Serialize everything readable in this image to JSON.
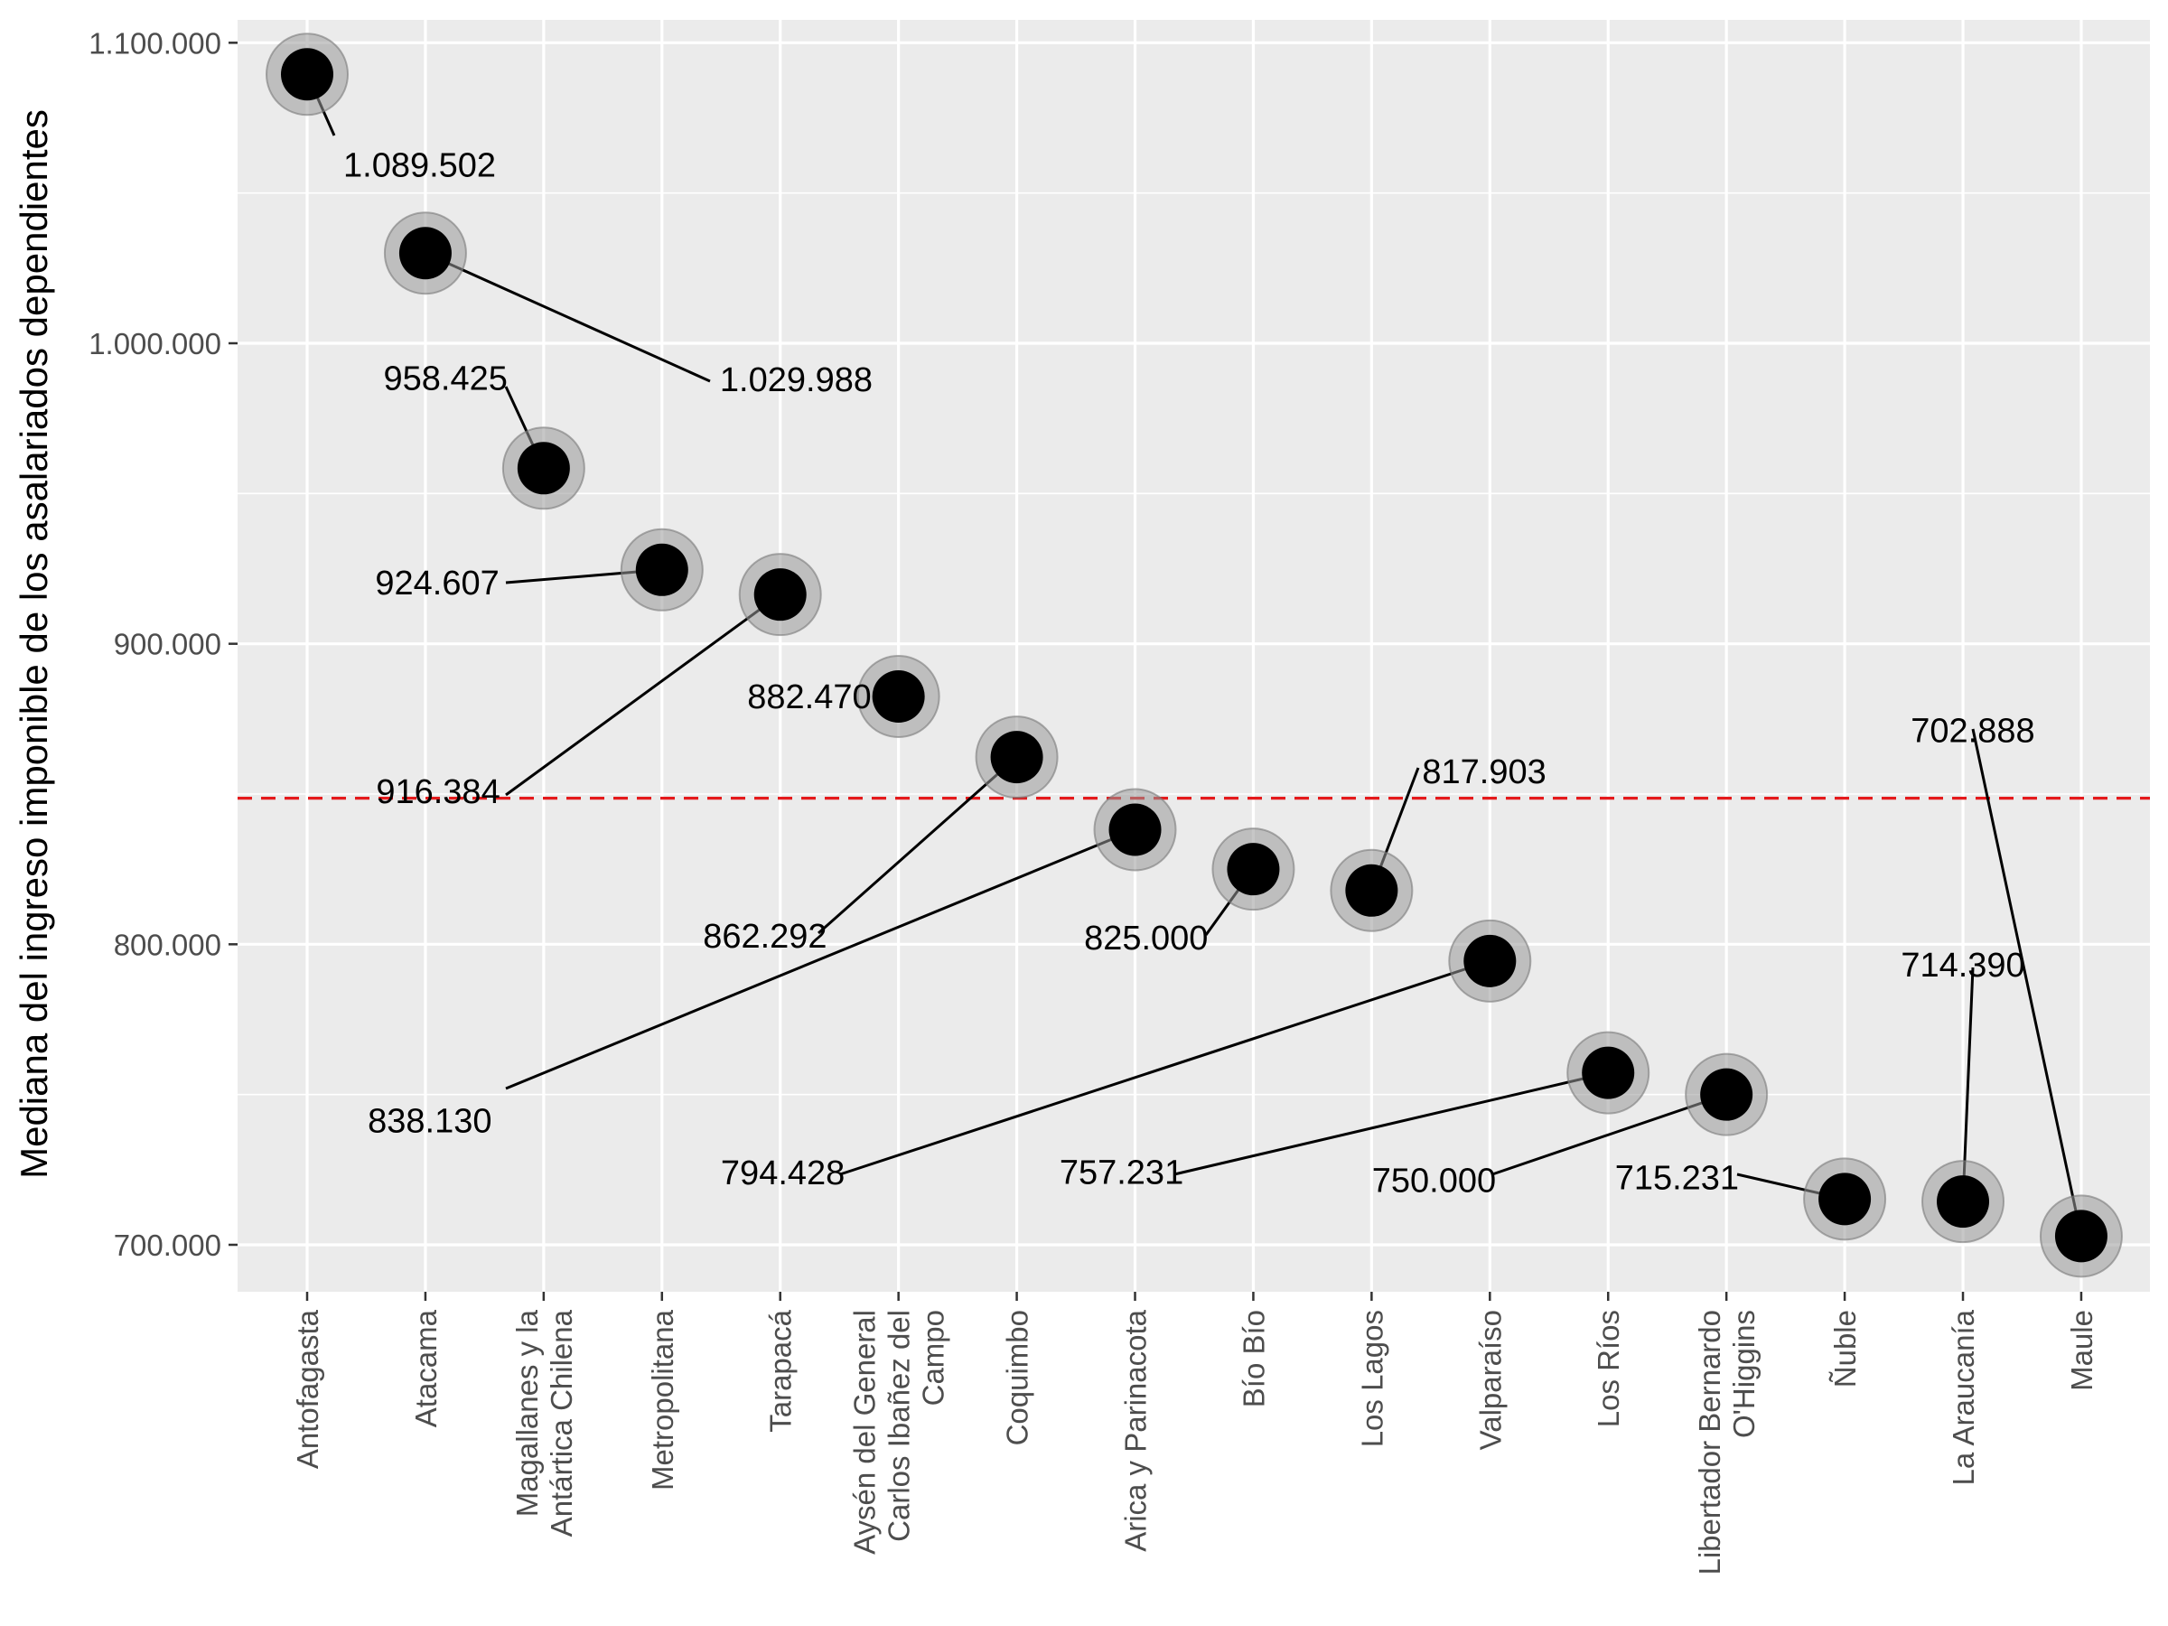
{
  "chart_data": {
    "type": "scatter",
    "title": "",
    "xlabel": "",
    "ylabel": "Mediana del ingreso imponible de los asalariados dependientes",
    "ylim": [
      683000,
      1110000
    ],
    "yticks": [
      700000,
      800000,
      900000,
      1000000,
      1100000
    ],
    "ytick_labels": [
      "700.000",
      "800.000",
      "900.000",
      "1.000.000",
      "1.100.000"
    ],
    "reference_line": {
      "value": 848600,
      "style": "dashed",
      "color": "#e41a1c"
    },
    "grid": true,
    "legend": "none",
    "point_color": "#000000",
    "halo_color": "#999999",
    "panel_color": "#ebebeb",
    "points": [
      {
        "category": "Antofagasta",
        "tick_lines": [
          "Antofagasta"
        ],
        "value": 1089502,
        "label": "1.089.502"
      },
      {
        "category": "Atacama",
        "tick_lines": [
          "Atacama"
        ],
        "value": 1029988,
        "label": "1.029.988"
      },
      {
        "category": "Magallanes y la Antártica Chilena",
        "tick_lines": [
          "Magallanes y la",
          "Antártica Chilena"
        ],
        "value": 958425,
        "label": "958.425"
      },
      {
        "category": "Metropolitana",
        "tick_lines": [
          "Metropolitana"
        ],
        "value": 924607,
        "label": "924.607"
      },
      {
        "category": "Tarapacá",
        "tick_lines": [
          "Tarapacá"
        ],
        "value": 916384,
        "label": "916.384"
      },
      {
        "category": "Aysén del General Carlos Ibañez del Campo",
        "tick_lines": [
          "Aysén del General",
          "Carlos Ibañez del",
          "Campo"
        ],
        "value": 882470,
        "label": "882.470"
      },
      {
        "category": "Coquimbo",
        "tick_lines": [
          "Coquimbo"
        ],
        "value": 862292,
        "label": "862.292"
      },
      {
        "category": "Arica y Parinacota",
        "tick_lines": [
          "Arica y Parinacota"
        ],
        "value": 838130,
        "label": "838.130"
      },
      {
        "category": "Bío Bío",
        "tick_lines": [
          "Bío Bío"
        ],
        "value": 825000,
        "label": "825.000"
      },
      {
        "category": "Los Lagos",
        "tick_lines": [
          "Los Lagos"
        ],
        "value": 817903,
        "label": "817.903"
      },
      {
        "category": "Valparaíso",
        "tick_lines": [
          "Valparaíso"
        ],
        "value": 794428,
        "label": "794.428"
      },
      {
        "category": "Los Ríos",
        "tick_lines": [
          "Los Ríos"
        ],
        "value": 757231,
        "label": "757.231"
      },
      {
        "category": "Libertador Bernardo O'Higgins",
        "tick_lines": [
          "Libertador Bernardo",
          "O'Higgins"
        ],
        "value": 750000,
        "label": "750.000"
      },
      {
        "category": "Ñuble",
        "tick_lines": [
          "Ñuble"
        ],
        "value": 715231,
        "label": "715.231"
      },
      {
        "category": "La Araucanía",
        "tick_lines": [
          "La Araucanía"
        ],
        "value": 714390,
        "label": "714.390"
      },
      {
        "category": "Maule",
        "tick_lines": [
          "Maule"
        ],
        "value": 702888,
        "label": "702.888"
      }
    ]
  }
}
